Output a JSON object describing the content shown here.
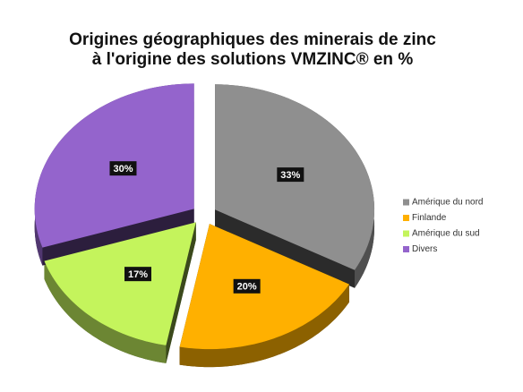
{
  "chart_data": {
    "type": "pie",
    "title": [
      "Origines géographiques des minerais de zinc",
      "à l'origine des solutions VMZINC® en %"
    ],
    "categories": [
      "Amérique du nord",
      "Finlande",
      "Amérique du sud",
      "Divers"
    ],
    "values": [
      33,
      20,
      17,
      30
    ],
    "value_labels": [
      "33%",
      "20%",
      "17%",
      "30%"
    ],
    "colors": [
      "#8f8f8f",
      "#ffb000",
      "#c4f45c",
      "#9464cc"
    ],
    "legend": "right"
  }
}
